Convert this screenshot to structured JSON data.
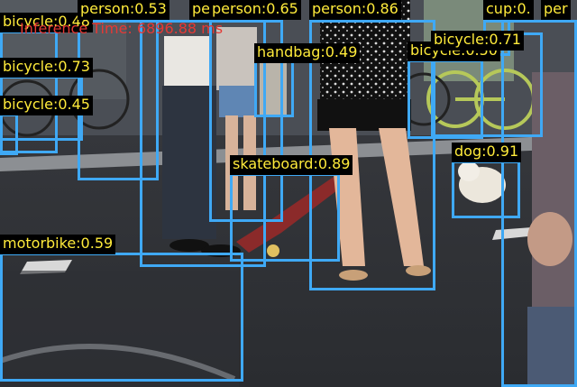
{
  "image": {
    "description_icon": "street-scene-photo",
    "inference_text": "Inference Time: 6896.88 ms",
    "inference_color": "#e53935",
    "box_color": "#3fa9f5",
    "label_text_color": "#ffeb3b",
    "label_bg_color": "#000000"
  },
  "detections": [
    {
      "label": "bicycle:0.48",
      "cls": "bicycle"
    },
    {
      "label": "person:0.53",
      "cls": "person"
    },
    {
      "label": "person:0.76",
      "cls": "person"
    },
    {
      "label": "person:0.65",
      "cls": "person"
    },
    {
      "label": "person:0.86",
      "cls": "person"
    },
    {
      "label": "cup:0.",
      "cls": "cup"
    },
    {
      "label": "per",
      "cls": "person"
    },
    {
      "label": "bicycle:0.73",
      "cls": "bicycle"
    },
    {
      "label": "bicycle:0.45",
      "cls": "bicycle"
    },
    {
      "label": "handbag:0.49",
      "cls": "handbag"
    },
    {
      "label": "bicycle:0.50",
      "cls": "bicycle"
    },
    {
      "label": "bicycle:0.71",
      "cls": "bicycle"
    },
    {
      "label": "dog:0.91",
      "cls": "dog"
    },
    {
      "label": "skateboard:0.89",
      "cls": "skateboard"
    },
    {
      "label": "motorbike:0.59",
      "cls": "motorbike"
    }
  ]
}
